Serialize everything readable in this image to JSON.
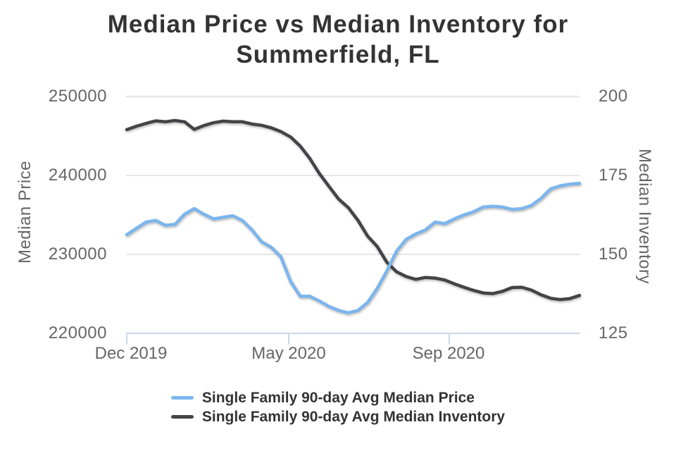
{
  "title": "Median Price vs Median Inventory for Summerfield, FL",
  "colors": {
    "price_line": "#7cb5ec",
    "inventory_line": "#434348",
    "grid_line": "#e6e6e6",
    "axis_line": "#ccd6eb",
    "title_text": "#333333",
    "tick_text": "#666666",
    "legend_text": "#333333",
    "background": "#ffffff"
  },
  "chart_data": {
    "type": "line",
    "title": "Median Price vs Median Inventory for Summerfield, FL",
    "grid": true,
    "legend_position": "bottom",
    "x_tick_labels": [
      "Dec 2019",
      "May 2020",
      "Sep 2020"
    ],
    "y_left": {
      "title": "Median Price",
      "min": 220000,
      "max": 250000,
      "tick_step": 10000,
      "tick_labels_top_down": [
        "250000",
        "240000",
        "230000",
        "220000"
      ]
    },
    "y_right": {
      "title": "Median Inventory",
      "min": 125,
      "max": 200,
      "tick_step": 25,
      "tick_labels_top_down": [
        "200",
        "175",
        "150",
        "125"
      ]
    },
    "series": [
      {
        "name": "Single Family 90-day Avg Median Price",
        "axis": "left",
        "color": "#7cb5ec",
        "values": [
          232500,
          233300,
          234100,
          234300,
          233700,
          233800,
          235100,
          235800,
          235100,
          234500,
          234700,
          234900,
          234300,
          233100,
          231600,
          230900,
          229700,
          226600,
          224700,
          224700,
          224100,
          223400,
          222900,
          222600,
          222900,
          223900,
          225700,
          227900,
          230400,
          231900,
          232600,
          233100,
          234100,
          233900,
          234500,
          235000,
          235400,
          236000,
          236100,
          236000,
          235700,
          235800,
          236200,
          237100,
          238300,
          238700,
          238900,
          239000
        ]
      },
      {
        "name": "Single Family 90-day Avg Median Inventory",
        "axis": "right",
        "color": "#434348",
        "values": [
          189.5,
          190.6,
          191.5,
          192.3,
          192.0,
          192.4,
          192.0,
          189.6,
          190.8,
          191.7,
          192.2,
          192.0,
          192.0,
          191.3,
          190.9,
          190.1,
          188.9,
          187.2,
          184.3,
          180.4,
          175.6,
          171.5,
          167.5,
          164.8,
          160.8,
          155.8,
          152.5,
          147.5,
          144.5,
          143.0,
          142.1,
          142.7,
          142.5,
          141.9,
          140.7,
          139.6,
          138.6,
          137.8,
          137.6,
          138.3,
          139.5,
          139.6,
          138.7,
          137.2,
          136.1,
          135.7,
          136.0,
          137.0
        ]
      }
    ]
  }
}
